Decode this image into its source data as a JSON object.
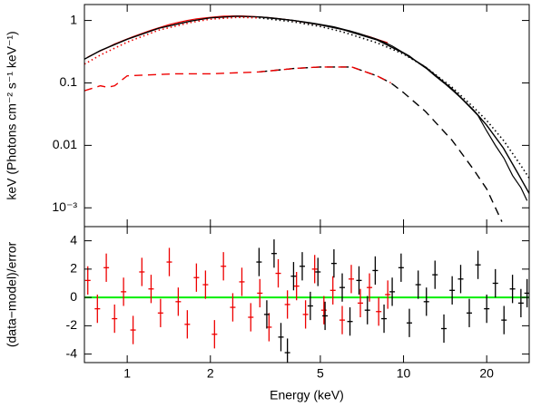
{
  "chart_data": [
    {
      "type": "line",
      "y_label": "keV (Photons cm⁻² s⁻¹ keV⁻¹)",
      "xlog": true,
      "ylog": true,
      "xlim": [
        0.7,
        28.5
      ],
      "xticks": [
        1,
        2,
        5,
        10,
        20
      ],
      "ylim": [
        0.0005,
        1.8
      ],
      "yticks": [
        1,
        0.1,
        0.01,
        {
          "value": 0.001,
          "label": "10⁻³"
        }
      ],
      "series": [
        {
          "color": "#ee0000",
          "style": "data",
          "x": [
            0.72,
            0.78,
            0.84,
            0.9,
            0.97,
            1.05,
            1.13,
            1.22,
            1.32,
            1.42,
            1.53,
            1.65,
            1.78,
            1.92,
            2.07,
            2.23,
            2.41,
            2.6,
            2.8,
            3.02,
            3.26,
            3.52,
            3.8,
            4.1,
            4.42,
            4.77,
            5.15,
            5.55,
            6.0,
            6.47,
            6.98,
            7.53,
            8.13,
            8.77
          ],
          "values": [
            0.26,
            0.31,
            0.36,
            0.42,
            0.48,
            0.55,
            0.62,
            0.7,
            0.78,
            0.86,
            0.93,
            1.0,
            1.06,
            1.1,
            1.14,
            1.17,
            1.18,
            1.18,
            1.16,
            1.14,
            1.11,
            1.07,
            1.03,
            0.98,
            0.93,
            0.88,
            0.83,
            0.78,
            0.72,
            0.66,
            0.6,
            0.55,
            0.49,
            0.44
          ]
        },
        {
          "color": "#000000",
          "style": "data",
          "x": [
            3.0,
            3.2,
            3.4,
            3.6,
            3.8,
            4.0,
            4.3,
            4.6,
            4.9,
            5.2,
            5.6,
            6.0,
            6.4,
            6.9,
            7.4,
            7.9,
            8.5,
            9.1,
            9.8,
            10.5,
            11.3,
            12.1,
            13.0,
            14.0,
            15.0,
            16.1,
            17.3,
            18.6,
            20.0,
            21.5,
            23.1,
            24.8,
            26.6,
            28.0
          ],
          "values": [
            1.14,
            1.12,
            1.09,
            1.06,
            1.03,
            1.0,
            0.96,
            0.92,
            0.88,
            0.84,
            0.79,
            0.73,
            0.68,
            0.62,
            0.56,
            0.51,
            0.45,
            0.39,
            0.32,
            0.27,
            0.21,
            0.17,
            0.13,
            0.1,
            0.077,
            0.058,
            0.042,
            0.03,
            0.017,
            0.01,
            0.0062,
            0.0033,
            0.0021,
            0.0013
          ]
        },
        {
          "color": "#000000",
          "style": "solid",
          "x": [
            0.7,
            0.8,
            1,
            1.3,
            1.7,
            2,
            2.5,
            3,
            4,
            5,
            6,
            8,
            10,
            12,
            15,
            18,
            20,
            23,
            26,
            28.5
          ],
          "values": [
            0.24,
            0.33,
            0.5,
            0.75,
            0.98,
            1.1,
            1.17,
            1.14,
            1.0,
            0.85,
            0.72,
            0.49,
            0.3,
            0.18,
            0.08,
            0.036,
            0.021,
            0.009,
            0.0035,
            0.0017
          ]
        },
        {
          "color": "#ee0000",
          "style": "dotted",
          "x": [
            0.7,
            0.8,
            1,
            1.3,
            1.7,
            2,
            2.5,
            3
          ],
          "values": [
            0.2,
            0.28,
            0.45,
            0.7,
            0.93,
            1.05,
            1.12,
            1.1
          ]
        },
        {
          "color": "#000000",
          "style": "dotted",
          "x": [
            3,
            4,
            5,
            6,
            8,
            10,
            12,
            15,
            18,
            20,
            23,
            26,
            28.5
          ],
          "values": [
            1.1,
            0.95,
            0.8,
            0.66,
            0.44,
            0.29,
            0.18,
            0.085,
            0.04,
            0.025,
            0.012,
            0.0055,
            0.003
          ]
        },
        {
          "color": "#000000",
          "style": "dashed",
          "x": [
            3,
            4,
            5,
            6.5,
            8,
            9,
            10,
            12,
            15,
            18,
            20,
            22.7
          ],
          "values": [
            0.15,
            0.17,
            0.18,
            0.18,
            0.13,
            0.1,
            0.07,
            0.035,
            0.012,
            0.004,
            0.002,
            0.0006
          ]
        },
        {
          "color": "#ee0000",
          "style": "dashed",
          "x": [
            0.7,
            0.8,
            0.85,
            0.9,
            1,
            1.5,
            2,
            3,
            4,
            5,
            6.5,
            8,
            9
          ],
          "values": [
            0.075,
            0.09,
            0.085,
            0.09,
            0.13,
            0.14,
            0.14,
            0.15,
            0.17,
            0.18,
            0.18,
            0.13,
            0.1
          ]
        }
      ]
    },
    {
      "type": "errorbar",
      "x_label": "Energy (keV)",
      "y_label": "(data−model)/error",
      "xlog": true,
      "ylog": false,
      "xlim": [
        0.7,
        28.5
      ],
      "xticks": [
        1,
        2,
        5,
        10,
        20
      ],
      "ylim": [
        -4.6,
        5
      ],
      "yticks": [
        -4,
        -2,
        0,
        2,
        4
      ],
      "reference_line": {
        "value": 0,
        "color": "#00ee00"
      },
      "series": [
        {
          "color": "#ee0000",
          "x": [
            0.72,
            0.78,
            0.84,
            0.9,
            0.97,
            1.05,
            1.13,
            1.22,
            1.32,
            1.42,
            1.53,
            1.65,
            1.78,
            1.92,
            2.07,
            2.23,
            2.41,
            2.6,
            2.8,
            3.02,
            3.26,
            3.52,
            3.8,
            4.1,
            4.42,
            4.77,
            5.15,
            5.55,
            6.0,
            6.47,
            6.98,
            7.53,
            8.13,
            8.77
          ],
          "values": [
            1.2,
            -0.8,
            2.1,
            -1.5,
            0.4,
            -2.3,
            1.8,
            0.6,
            -1.1,
            2.5,
            -0.3,
            -1.9,
            1.4,
            0.9,
            -2.6,
            2.2,
            -0.7,
            1.1,
            -1.4,
            0.3,
            -2.1,
            1.7,
            -0.5,
            0.8,
            -1.2,
            2.0,
            -0.9,
            0.5,
            -1.6,
            1.3,
            -0.4,
            0.7,
            -1.0,
            0.2
          ],
          "errors": [
            1,
            1,
            1,
            1,
            1,
            1,
            1,
            1,
            1,
            1,
            1,
            1,
            1,
            1,
            1,
            1,
            1,
            1,
            1,
            1,
            1,
            1,
            1,
            1,
            1,
            1,
            1,
            1,
            1,
            1,
            1,
            1,
            1,
            1
          ]
        },
        {
          "color": "#000000",
          "x": [
            3.0,
            3.2,
            3.4,
            3.6,
            3.8,
            4.0,
            4.3,
            4.6,
            4.9,
            5.2,
            5.6,
            6.0,
            6.4,
            6.9,
            7.4,
            7.9,
            8.5,
            9.1,
            9.8,
            10.5,
            11.3,
            12.1,
            13.0,
            14.0,
            15.0,
            16.1,
            17.3,
            18.6,
            20.0,
            21.5,
            23.1,
            24.8,
            26.6,
            28.0
          ],
          "values": [
            2.5,
            -1.2,
            3.1,
            -2.8,
            -3.9,
            1.5,
            2.2,
            -0.6,
            1.8,
            -1.3,
            2.4,
            0.7,
            -1.7,
            1.2,
            -0.9,
            1.9,
            -1.5,
            0.4,
            2.1,
            -1.8,
            0.9,
            -0.3,
            1.6,
            -2.2,
            0.5,
            1.3,
            -1.1,
            2.3,
            -0.8,
            1.0,
            -1.6,
            0.6,
            -0.4,
            0.3
          ],
          "errors": [
            1,
            1,
            1,
            1,
            1,
            1,
            1,
            1,
            1,
            1,
            1,
            1,
            1,
            1,
            1,
            1,
            1,
            1,
            1,
            1,
            1,
            1,
            1,
            1,
            1,
            1,
            1,
            1,
            1,
            1,
            1,
            1,
            1,
            1
          ]
        }
      ]
    }
  ]
}
